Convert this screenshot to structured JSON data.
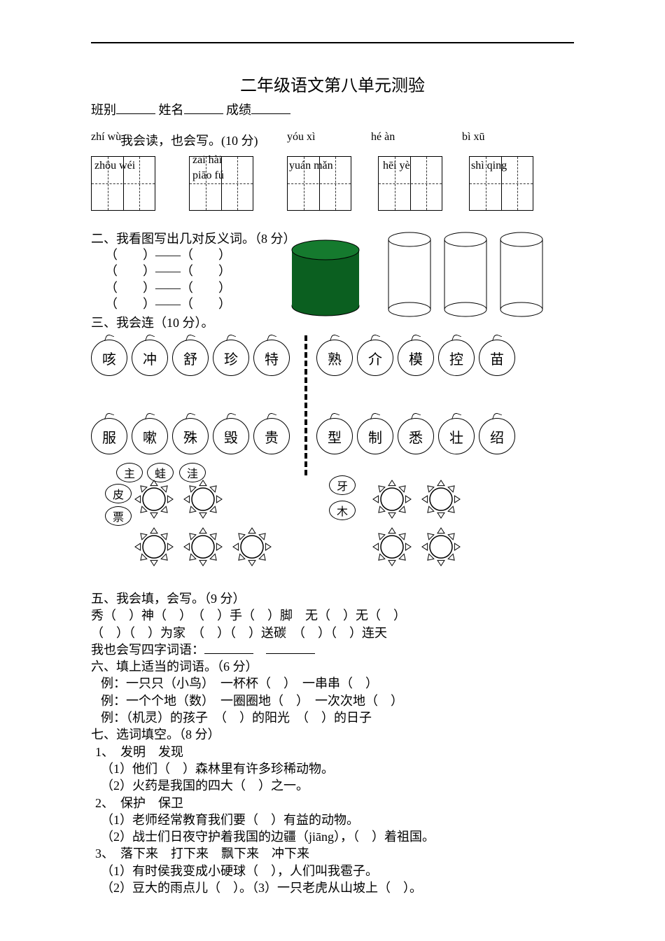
{
  "title": "二年级语文第八单元测验",
  "info": {
    "class_label": "班别",
    "name_label": "姓名",
    "score_label": "成绩"
  },
  "sec1": {
    "intro": "我会读，也会写。(10 分)",
    "pinyin_top": [
      "zhí  wù",
      "yóu   xì",
      "hé    àn",
      "bì    xū"
    ],
    "pinyin_mid": [
      "zhōu wéi",
      "zāi   hài",
      "yuán mǎn",
      "hēi   yè",
      "shì  qing"
    ],
    "pinyin_low": [
      "",
      "piāo  fú",
      "",
      "",
      ""
    ]
  },
  "sec2": {
    "heading": "二、我看图写出几对反义词。（8 分）",
    "dash": "——"
  },
  "sec3": {
    "heading": "三、我会连（10 分）。",
    "apples_top": [
      "咳",
      "冲",
      "舒",
      "珍",
      "特",
      "熟",
      "介",
      "模",
      "控",
      "苗"
    ],
    "apples_bottom": [
      "服",
      "嗽",
      "殊",
      "毁",
      "贵",
      "型",
      "制",
      "悉",
      "壮",
      "绍"
    ]
  },
  "sec4": {
    "chars_left": [
      "主",
      "蛙",
      "洼"
    ],
    "chars_left2": [
      "皮",
      "票"
    ],
    "chars_mid": [
      "牙",
      "木"
    ]
  },
  "sec5": {
    "heading": "五、我会填，会写。（9 分）",
    "line1": "秀（　）神（　）　（　）手（　）脚　无（　）无（　）",
    "line2": "（　）（　）为家　（　）（　）送碳　（　）（　）连天",
    "line3": "我也会写四字词语："
  },
  "sec6": {
    "heading": "六、填上适当的词语。（6 分）",
    "ex1": "例：一只只（小鸟）　一杯杯（　）　一串串（　）",
    "ex2": "例：一个个地（数）　一圈圈地（　）　一次次地（　）",
    "ex3": "例：（机灵）的孩子　（　）的阳光　（　）的日子"
  },
  "sec7": {
    "heading": "七、选词填空。（8 分）",
    "g1_words": "1、　发明　发现",
    "g1_1": "（1）他们（　）森林里有许多珍稀动物。",
    "g1_2": "（2）火药是我国的四大（　）之一。",
    "g2_words": "2、　保护　保卫",
    "g2_1": "（1）老师经常教育我们要（　）有益的动物。",
    "g2_2": "（2）战士们日夜守护着我国的边疆（jiāng），（　）着祖国。",
    "g3_words": "3、　落下来　打下来　飘下来　冲下来",
    "g3_1": "（1）有时侯我变成小硬球（　），人们叫我雹子。",
    "g3_2": "（2）豆大的雨点儿（　）。（3）一只老虎从山坡上（　）。"
  },
  "colors": {
    "cylinder_fill": "#0b5f20",
    "line": "#000000",
    "bg": "#ffffff"
  }
}
